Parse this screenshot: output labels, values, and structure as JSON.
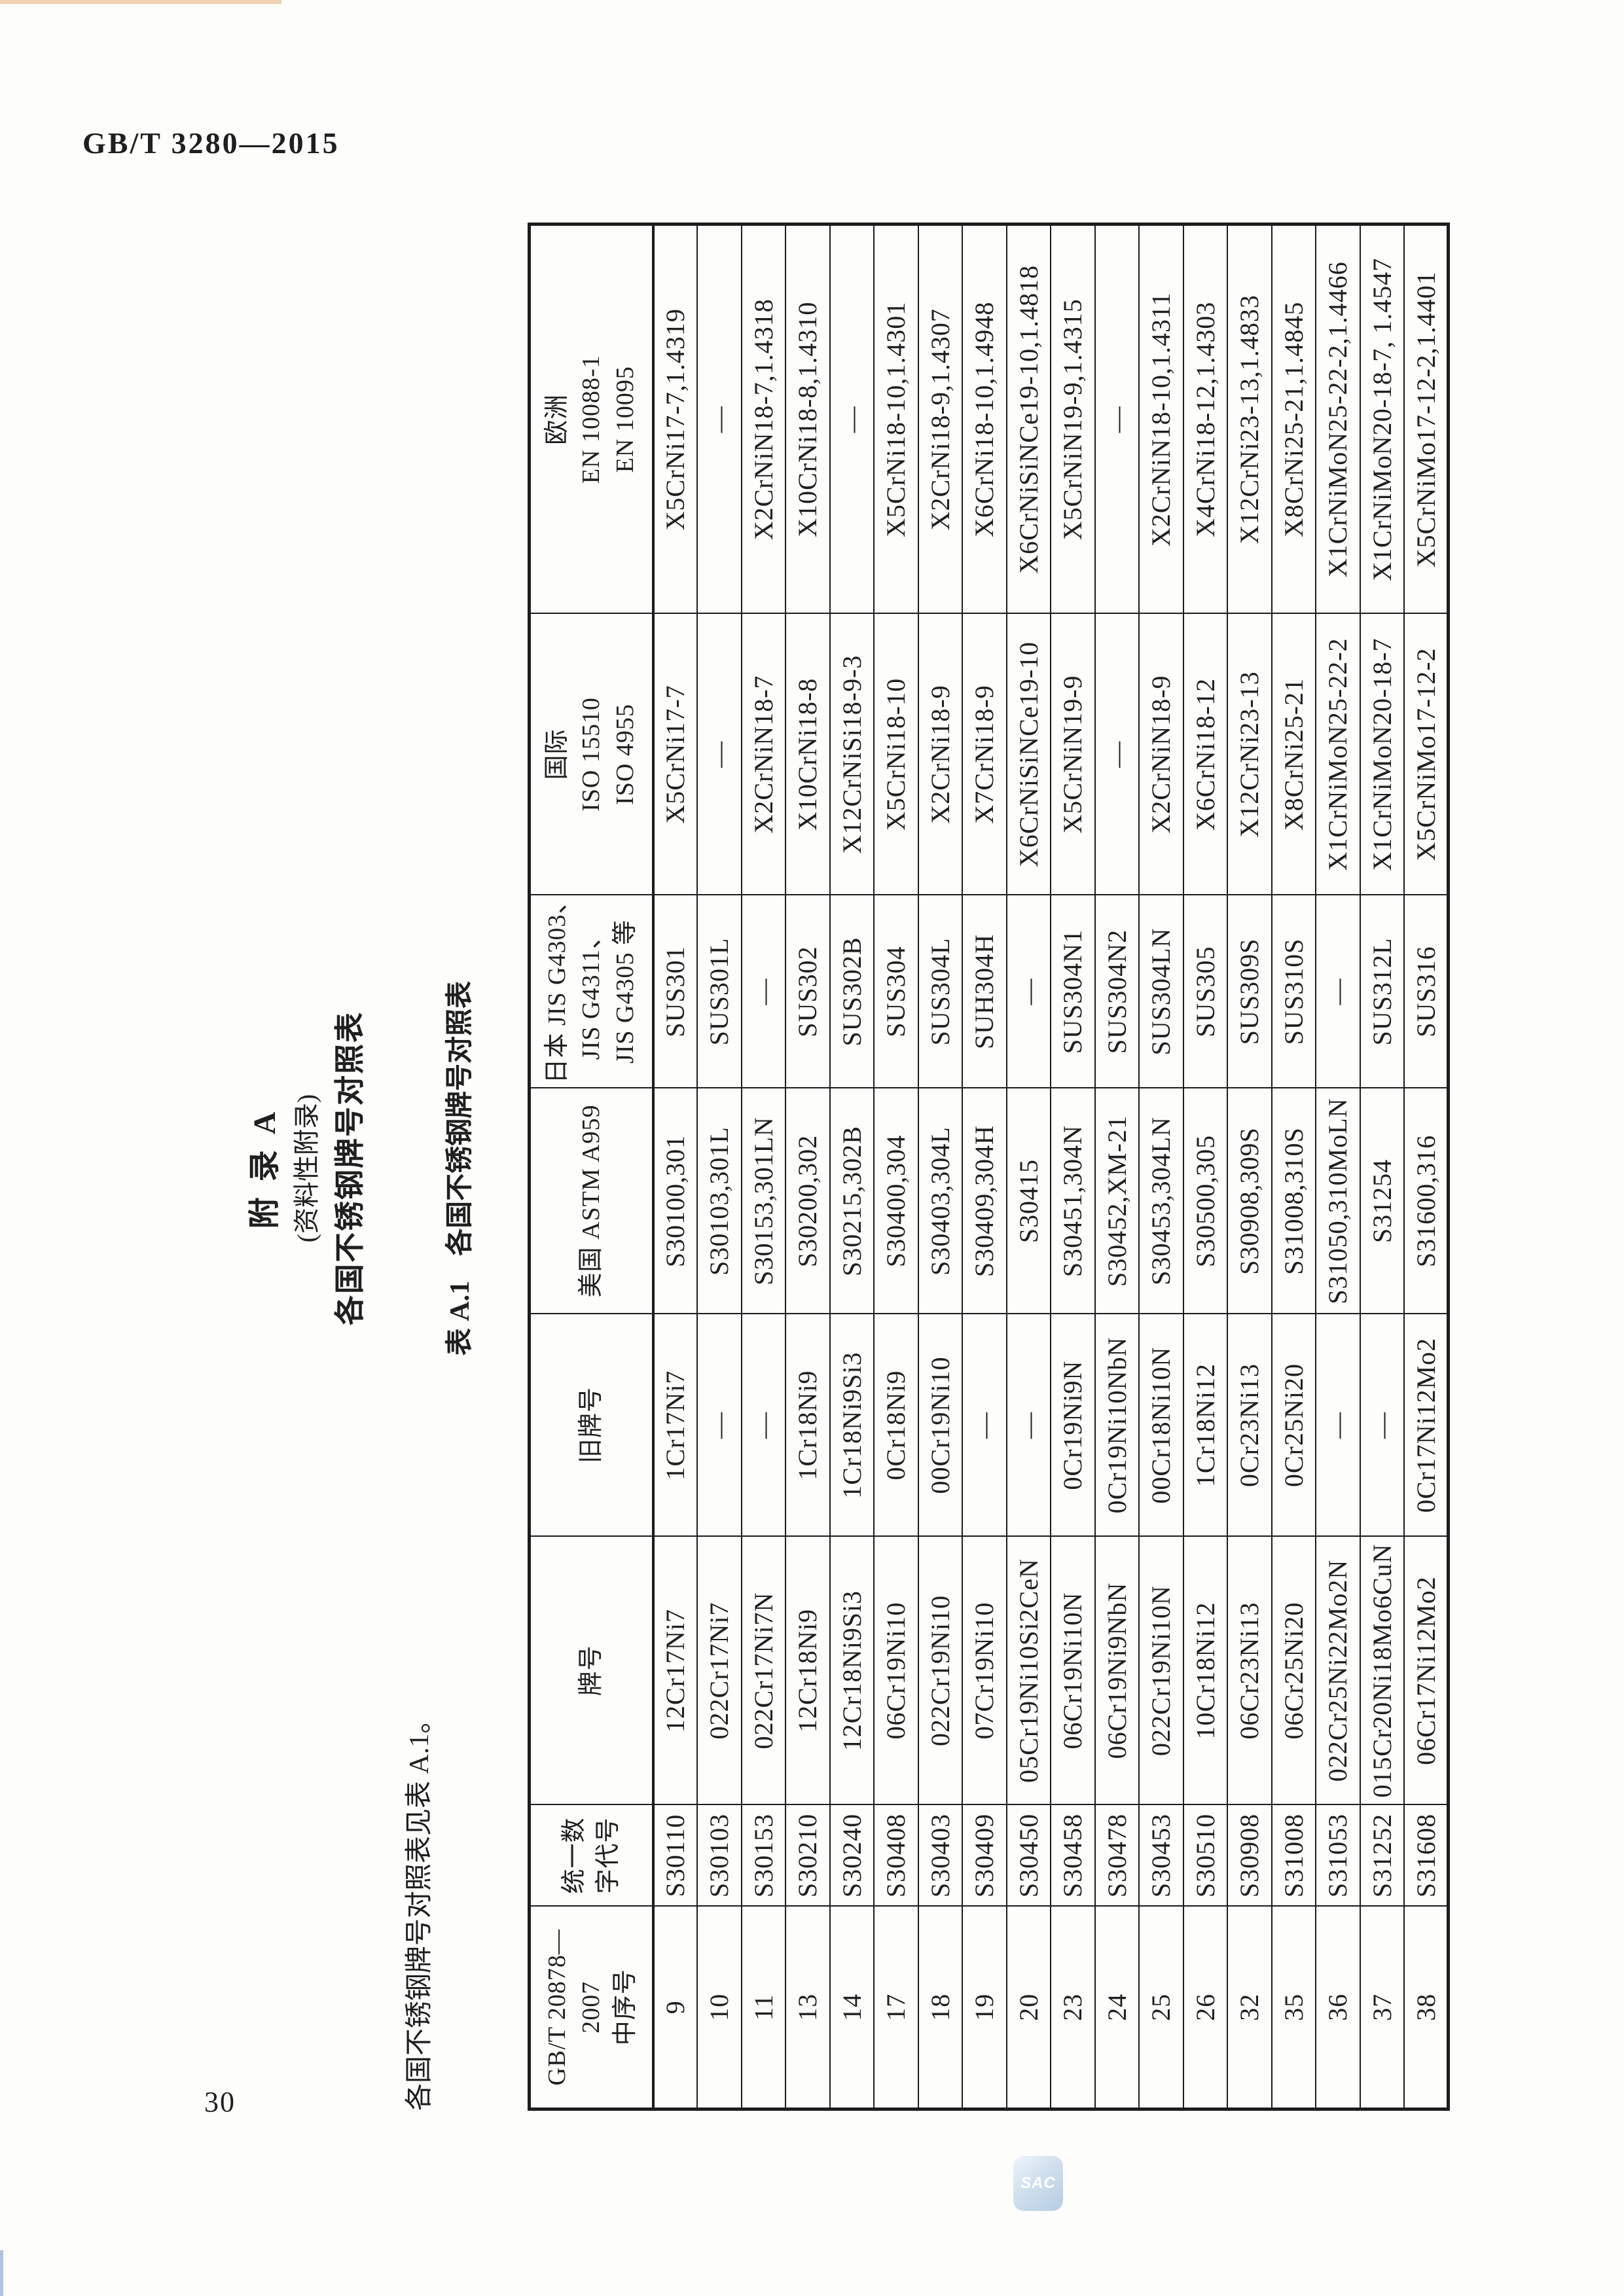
{
  "page": {
    "doc_code": "GB/T 3280—2015",
    "page_number": "30",
    "logo_text": "SAC"
  },
  "appendix": {
    "title": "附  录  A",
    "subtitle": "(资料性附录)",
    "section_title": "各国不锈钢牌号对照表",
    "intro": "各国不锈钢牌号对照表见表 A.1。",
    "caption_label": "表 A.1",
    "caption_title": "各国不锈钢牌号对照表"
  },
  "table": {
    "headers": [
      {
        "name": "gbt20878-serial",
        "lines": [
          "GB/T 20878—",
          "2007",
          "中序号"
        ]
      },
      {
        "name": "unified-code",
        "lines": [
          "统一数",
          "字代号"
        ]
      },
      {
        "name": "designation",
        "lines": [
          "牌号"
        ]
      },
      {
        "name": "old-designation",
        "lines": [
          "旧牌号"
        ]
      },
      {
        "name": "usa-astm",
        "lines": [
          "美国 ASTM A959"
        ]
      },
      {
        "name": "japan-jis",
        "lines": [
          "日本 JIS G4303、",
          "JIS G4311、",
          "JIS G4305 等"
        ]
      },
      {
        "name": "international-iso",
        "lines": [
          "国际",
          "ISO 15510",
          "ISO 4955"
        ]
      },
      {
        "name": "europe-en",
        "lines": [
          "欧洲",
          "EN 10088-1",
          "EN 10095"
        ]
      }
    ],
    "rows": [
      [
        "9",
        "S30110",
        "12Cr17Ni7",
        "1Cr17Ni7",
        "S30100,301",
        "SUS301",
        "X5CrNi17-7",
        "X5CrNi17-7,1.4319"
      ],
      [
        "10",
        "S30103",
        "022Cr17Ni7",
        "—",
        "S30103,301L",
        "SUS301L",
        "—",
        "—"
      ],
      [
        "11",
        "S30153",
        "022Cr17Ni7N",
        "—",
        "S30153,301LN",
        "—",
        "X2CrNiN18-7",
        "X2CrNiN18-7,1.4318"
      ],
      [
        "13",
        "S30210",
        "12Cr18Ni9",
        "1Cr18Ni9",
        "S30200,302",
        "SUS302",
        "X10CrNi18-8",
        "X10CrNi18-8,1.4310"
      ],
      [
        "14",
        "S30240",
        "12Cr18Ni9Si3",
        "1Cr18Ni9Si3",
        "S30215,302B",
        "SUS302B",
        "X12CrNiSi18-9-3",
        "—"
      ],
      [
        "17",
        "S30408",
        "06Cr19Ni10",
        "0Cr18Ni9",
        "S30400,304",
        "SUS304",
        "X5CrNi18-10",
        "X5CrNi18-10,1.4301"
      ],
      [
        "18",
        "S30403",
        "022Cr19Ni10",
        "00Cr19Ni10",
        "S30403,304L",
        "SUS304L",
        "X2CrNi18-9",
        "X2CrNi18-9,1.4307"
      ],
      [
        "19",
        "S30409",
        "07Cr19Ni10",
        "—",
        "S30409,304H",
        "SUH304H",
        "X7CrNi18-9",
        "X6CrNi18-10,1.4948"
      ],
      [
        "20",
        "S30450",
        "05Cr19Ni10Si2CeN",
        "—",
        "S30415",
        "—",
        "X6CrNiSiNCe19-10",
        "X6CrNiSiNCe19-10,1.4818"
      ],
      [
        "23",
        "S30458",
        "06Cr19Ni10N",
        "0Cr19Ni9N",
        "S30451,304N",
        "SUS304N1",
        "X5CrNiN19-9",
        "X5CrNiN19-9,1.4315"
      ],
      [
        "24",
        "S30478",
        "06Cr19Ni9NbN",
        "0Cr19Ni10NbN",
        "S30452,XM-21",
        "SUS304N2",
        "—",
        "—"
      ],
      [
        "25",
        "S30453",
        "022Cr19Ni10N",
        "00Cr18Ni10N",
        "S30453,304LN",
        "SUS304LN",
        "X2CrNiN18-9",
        "X2CrNiN18-10,1.4311"
      ],
      [
        "26",
        "S30510",
        "10Cr18Ni12",
        "1Cr18Ni12",
        "S30500,305",
        "SUS305",
        "X6CrNi18-12",
        "X4CrNi18-12,1.4303"
      ],
      [
        "32",
        "S30908",
        "06Cr23Ni13",
        "0Cr23Ni13",
        "S30908,309S",
        "SUS309S",
        "X12CrNi23-13",
        "X12CrNi23-13,1.4833"
      ],
      [
        "35",
        "S31008",
        "06Cr25Ni20",
        "0Cr25Ni20",
        "S31008,310S",
        "SUS310S",
        "X8CrNi25-21",
        "X8CrNi25-21,1.4845"
      ],
      [
        "36",
        "S31053",
        "022Cr25Ni22Mo2N",
        "—",
        "S31050,310MoLN",
        "—",
        "X1CrNiMoN25-22-2",
        "X1CrNiMoN25-22-2,1.4466"
      ],
      [
        "37",
        "S31252",
        "015Cr20Ni18Mo6CuN",
        "—",
        "S31254",
        "SUS312L",
        "X1CrNiMoN20-18-7",
        "X1CrNiMoN20-18-7, 1.4547"
      ],
      [
        "38",
        "S31608",
        "06Cr17Ni12Mo2",
        "0Cr17Ni12Mo2",
        "S31600,316",
        "SUS316",
        "X5CrNiMo17-12-2",
        "X5CrNiMo17-12-2,1.4401"
      ]
    ]
  },
  "colors": {
    "border": "#1c1c1c",
    "text": "#1f1f1f",
    "logo_blue": "#a4c2de",
    "edge_orange": "#e0a05a",
    "edge_blue": "#6f94c0"
  }
}
